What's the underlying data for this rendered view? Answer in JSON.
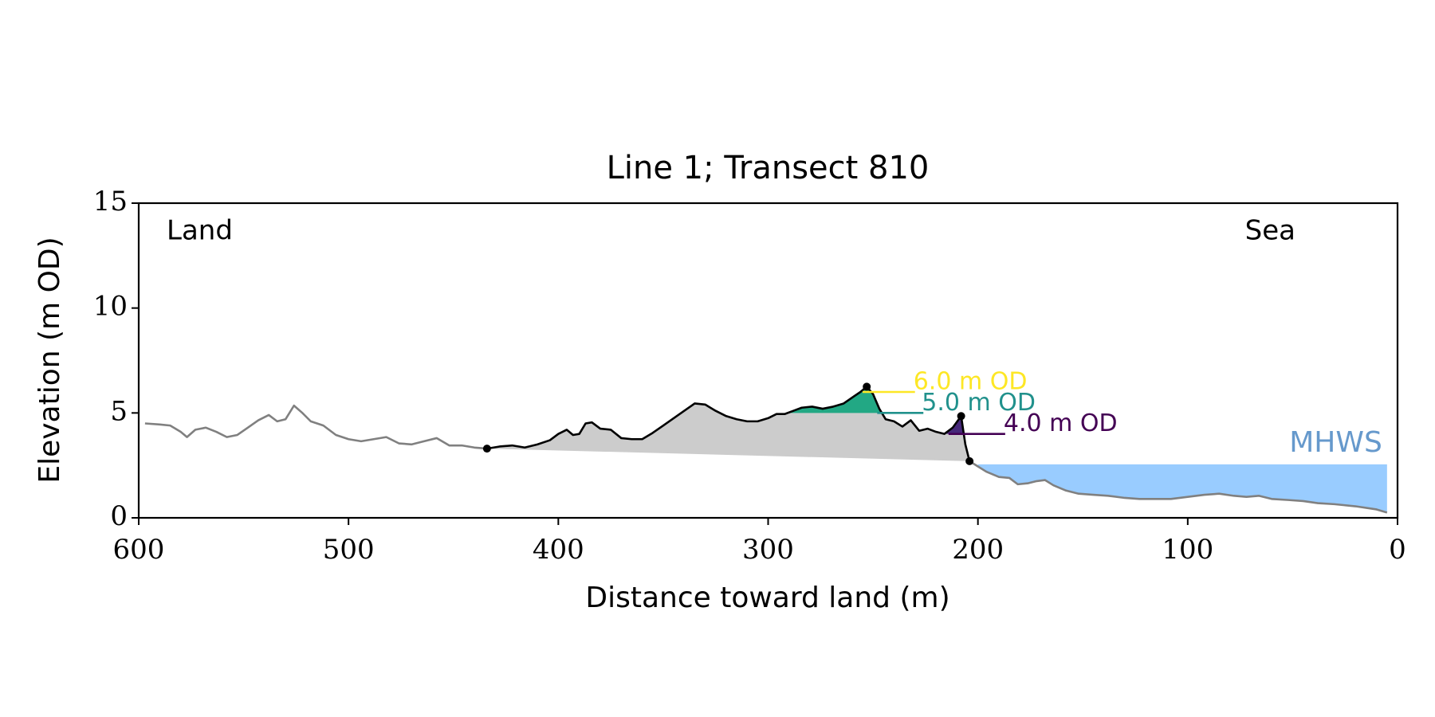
{
  "chart_data": {
    "type": "line",
    "title": "Line 1; Transect 810",
    "xlabel": "Distance toward land (m)",
    "ylabel": "Elevation (m OD)",
    "xlim": [
      600,
      0
    ],
    "ylim": [
      0,
      15
    ],
    "xticks": [
      600,
      500,
      400,
      300,
      200,
      100,
      0
    ],
    "yticks": [
      0,
      5,
      10,
      15
    ],
    "x": [
      597,
      590,
      585,
      580,
      577,
      573,
      568,
      563,
      558,
      553,
      548,
      543,
      538,
      534,
      530,
      526,
      522,
      518,
      512,
      506,
      500,
      494,
      488,
      482,
      476,
      470,
      464,
      458,
      452,
      446,
      440,
      434,
      428,
      422,
      416,
      410,
      404,
      400,
      396,
      393,
      390,
      387,
      384,
      380,
      375,
      370,
      365,
      360,
      355,
      350,
      345,
      340,
      335,
      330,
      325,
      320,
      315,
      310,
      305,
      300,
      296,
      292,
      288,
      284,
      279,
      274,
      269,
      264,
      259,
      256,
      253,
      250,
      247,
      244,
      240,
      236,
      232,
      228,
      224,
      220,
      216,
      212,
      208,
      206,
      204,
      200,
      196,
      190,
      185,
      181,
      176,
      172,
      168,
      164,
      158,
      152,
      145,
      138,
      130,
      123,
      115,
      108,
      100,
      92,
      85,
      78,
      72,
      66,
      60,
      52,
      45,
      38,
      30,
      20,
      10,
      5
    ],
    "series": [
      {
        "color": "#808080",
        "values": [
          4.5,
          4.45,
          4.4,
          4.1,
          3.85,
          4.2,
          4.3,
          4.1,
          3.85,
          3.95,
          4.3,
          4.65,
          4.9,
          4.6,
          4.7,
          5.35,
          5.0,
          4.6,
          4.4,
          3.95,
          3.75,
          3.65,
          3.75,
          3.85,
          3.55,
          3.5,
          3.65,
          3.8,
          3.45,
          3.45,
          3.35,
          3.3,
          null,
          null,
          null,
          null,
          null,
          null,
          null,
          null,
          null,
          null,
          null,
          null,
          null,
          null,
          null,
          null,
          null,
          null,
          null,
          null,
          null,
          null,
          null,
          null,
          null,
          null,
          null,
          null,
          null,
          null,
          null,
          null,
          null,
          null,
          null,
          null,
          null,
          null,
          null,
          null,
          null,
          null,
          null,
          null,
          null,
          null,
          null,
          null,
          null,
          null,
          null,
          null,
          2.7,
          2.45,
          2.2,
          1.95,
          1.9,
          1.6,
          1.65,
          1.75,
          1.8,
          1.55,
          1.3,
          1.15,
          1.1,
          1.05,
          0.95,
          0.9,
          0.9,
          0.9,
          1.0,
          1.1,
          1.15,
          1.05,
          1.0,
          1.05,
          0.9,
          0.85,
          0.8,
          0.7,
          0.65,
          0.55,
          0.4,
          0.25
        ]
      },
      {
        "color": "#000000",
        "fill_color": "#cccccc",
        "marker_x": [
          434,
          253,
          208,
          204
        ],
        "values": [
          null,
          null,
          null,
          null,
          null,
          null,
          null,
          null,
          null,
          null,
          null,
          null,
          null,
          null,
          null,
          null,
          null,
          null,
          null,
          null,
          null,
          null,
          null,
          null,
          null,
          null,
          null,
          null,
          null,
          null,
          null,
          3.3,
          3.4,
          3.45,
          3.35,
          3.5,
          3.7,
          4.0,
          4.2,
          3.95,
          4.0,
          4.5,
          4.55,
          4.25,
          4.2,
          3.8,
          3.75,
          3.75,
          4.05,
          4.4,
          4.75,
          5.1,
          5.45,
          5.4,
          5.1,
          4.85,
          4.7,
          4.6,
          4.6,
          4.75,
          4.95,
          4.95,
          5.1,
          5.25,
          5.3,
          5.2,
          5.3,
          5.45,
          5.8,
          6.0,
          6.25,
          5.9,
          5.2,
          4.7,
          4.6,
          4.35,
          4.65,
          4.15,
          4.25,
          4.1,
          4.0,
          4.3,
          4.85,
          3.5,
          2.7,
          null,
          null,
          null,
          null,
          null,
          null,
          null,
          null,
          null,
          null,
          null,
          null,
          null,
          null,
          null,
          null,
          null,
          null,
          null,
          null,
          null,
          null,
          null,
          null,
          null,
          null,
          null,
          null,
          null,
          null,
          null
        ]
      }
    ],
    "levels": [
      {
        "label": "6.0 m OD",
        "value": 6.0,
        "color": "#fde725",
        "x": [
          255,
          230
        ]
      },
      {
        "label": "5.0 m OD",
        "value": 5.0,
        "color": "#21918c",
        "x": [
          248,
          226
        ],
        "fill_color": "#22a884",
        "fill_x": [
          292,
          246.5
        ]
      },
      {
        "label": "4.0 m OD",
        "value": 4.0,
        "color": "#440154",
        "x": [
          214,
          187
        ],
        "fill_color": "#46287a",
        "fill_x": [
          215,
          206.6
        ]
      }
    ],
    "mhws": {
      "label": "MHWS",
      "value": 2.55,
      "color": "#99ccff",
      "label_color": "#6699cc",
      "x": [
        200,
        5
      ]
    },
    "annotations": [
      {
        "text": "Land",
        "corner": "upper left"
      },
      {
        "text": "Sea",
        "corner": "upper right"
      }
    ]
  }
}
